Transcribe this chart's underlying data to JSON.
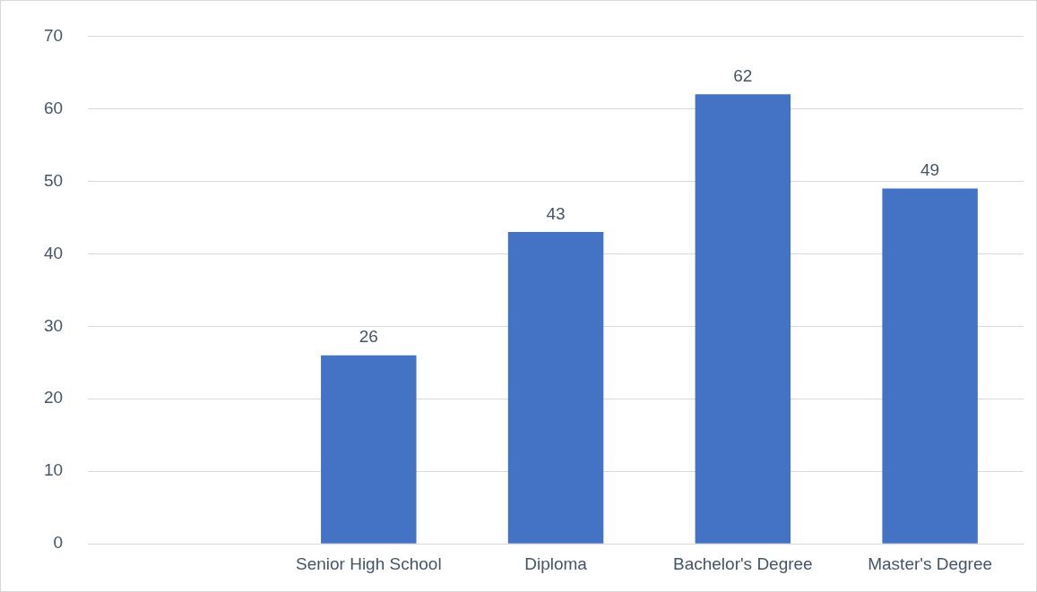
{
  "chart_data": {
    "type": "bar",
    "categories": [
      null,
      "Senior High School",
      "Diploma",
      "Bachelor's Degree",
      "Master's Degree"
    ],
    "values": [
      null,
      26,
      43,
      62,
      49
    ],
    "color": "#4472c4",
    "ylim": [
      0,
      70
    ],
    "yticks": [
      0,
      10,
      20,
      30,
      40,
      50,
      60,
      70
    ],
    "grid": "y",
    "data_labels": true,
    "legend": false
  }
}
